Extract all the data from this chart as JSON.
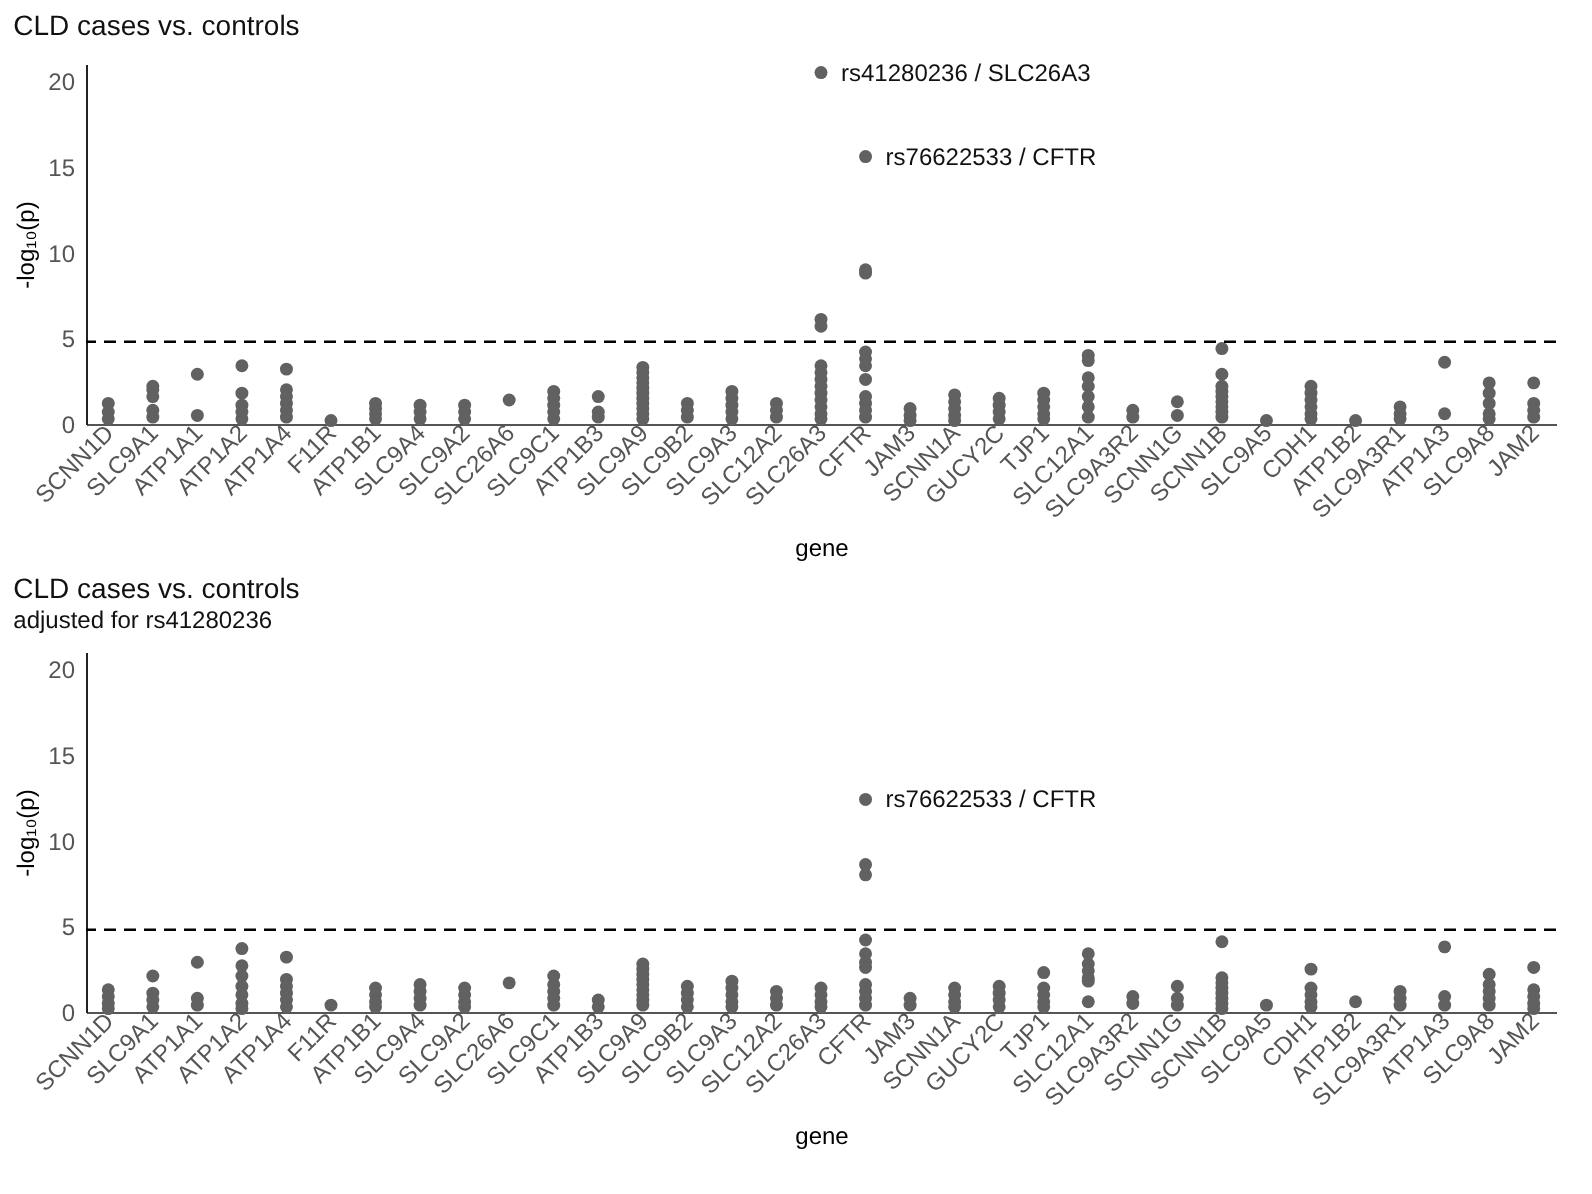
{
  "chart_data": [
    {
      "type": "scatter",
      "title": "CLD cases vs. controls",
      "xlabel": "gene",
      "ylabel": "-log₁₀(p)",
      "categories": [
        "SCNN1D",
        "SLC9A1",
        "ATP1A1",
        "ATP1A2",
        "ATP1A4",
        "F11R",
        "ATP1B1",
        "SLC9A4",
        "SLC9A2",
        "SLC26A6",
        "SLC9C1",
        "ATP1B3",
        "SLC9A9",
        "SLC9B2",
        "SLC9A3",
        "SLC12A2",
        "SLC26A3",
        "CFTR",
        "JAM3",
        "SCNN1A",
        "GUCY2C",
        "TJP1",
        "SLC12A1",
        "SLC9A3R2",
        "SCNN1G",
        "SCNN1B",
        "SLC9A5",
        "CDH1",
        "ATP1B2",
        "SLC9A3R1",
        "ATP1A3",
        "SLC9A8",
        "JAM2"
      ],
      "series": [
        {
          "color": "#616161",
          "x": [
            "SCNN1D",
            "SCNN1D",
            "SCNN1D",
            "SLC9A1",
            "SLC9A1",
            "SLC9A1",
            "SLC9A1",
            "SLC9A1",
            "ATP1A1",
            "ATP1A1",
            "ATP1A2",
            "ATP1A2",
            "ATP1A2",
            "ATP1A2",
            "ATP1A2",
            "ATP1A4",
            "ATP1A4",
            "ATP1A4",
            "ATP1A4",
            "ATP1A4",
            "ATP1A4",
            "F11R",
            "ATP1B1",
            "ATP1B1",
            "ATP1B1",
            "ATP1B1",
            "SLC9A4",
            "SLC9A4",
            "SLC9A4",
            "SLC9A2",
            "SLC9A2",
            "SLC9A2",
            "SLC26A6",
            "SLC9C1",
            "SLC9C1",
            "SLC9C1",
            "SLC9C1",
            "SLC9C1",
            "ATP1B3",
            "ATP1B3",
            "ATP1B3",
            "SLC9A9",
            "SLC9A9",
            "SLC9A9",
            "SLC9A9",
            "SLC9A9",
            "SLC9A9",
            "SLC9A9",
            "SLC9A9",
            "SLC9A9",
            "SLC9A9",
            "SLC9A9",
            "SLC9B2",
            "SLC9B2",
            "SLC9B2",
            "SLC9A3",
            "SLC9A3",
            "SLC9A3",
            "SLC9A3",
            "SLC9A3",
            "SLC12A2",
            "SLC12A2",
            "SLC12A2",
            "SLC26A3",
            "SLC26A3",
            "SLC26A3",
            "SLC26A3",
            "SLC26A3",
            "SLC26A3",
            "SLC26A3",
            "SLC26A3",
            "SLC26A3",
            "SLC26A3",
            "SLC26A3",
            "SLC26A3",
            "CFTR",
            "CFTR",
            "CFTR",
            "CFTR",
            "CFTR",
            "CFTR",
            "CFTR",
            "CFTR",
            "CFTR",
            "CFTR",
            "CFTR",
            "JAM3",
            "JAM3",
            "JAM3",
            "SCNN1A",
            "SCNN1A",
            "SCNN1A",
            "SCNN1A",
            "SCNN1A",
            "GUCY2C",
            "GUCY2C",
            "GUCY2C",
            "GUCY2C",
            "TJP1",
            "TJP1",
            "TJP1",
            "TJP1",
            "TJP1",
            "SLC12A1",
            "SLC12A1",
            "SLC12A1",
            "SLC12A1",
            "SLC12A1",
            "SLC12A1",
            "SLC12A1",
            "SLC9A3R2",
            "SLC9A3R2",
            "SCNN1G",
            "SCNN1G",
            "SCNN1B",
            "SCNN1B",
            "SCNN1B",
            "SCNN1B",
            "SCNN1B",
            "SCNN1B",
            "SCNN1B",
            "SCNN1B",
            "SCNN1B",
            "SLC9A5",
            "CDH1",
            "CDH1",
            "CDH1",
            "CDH1",
            "CDH1",
            "CDH1",
            "ATP1B2",
            "SLC9A3R1",
            "SLC9A3R1",
            "SLC9A3R1",
            "ATP1A3",
            "ATP1A3",
            "SLC9A8",
            "SLC9A8",
            "SLC9A8",
            "SLC9A8",
            "SLC9A8",
            "JAM2",
            "JAM2",
            "JAM2",
            "JAM2"
          ],
          "values": [
            1.2,
            0.7,
            0.3,
            2.2,
            2.0,
            1.6,
            0.8,
            0.4,
            2.9,
            0.5,
            3.4,
            1.8,
            1.1,
            0.7,
            0.3,
            3.2,
            2.0,
            1.6,
            1.2,
            0.8,
            0.4,
            0.2,
            1.2,
            0.9,
            0.6,
            0.3,
            1.1,
            0.7,
            0.3,
            1.1,
            0.7,
            0.3,
            1.4,
            1.9,
            1.5,
            1.1,
            0.7,
            0.3,
            1.6,
            0.7,
            0.4,
            3.3,
            3.0,
            2.7,
            2.4,
            2.1,
            1.8,
            1.5,
            1.2,
            0.9,
            0.6,
            0.3,
            1.2,
            0.8,
            0.4,
            1.9,
            1.5,
            1.1,
            0.7,
            0.3,
            1.2,
            0.8,
            0.4,
            20.5,
            6.1,
            5.7,
            3.4,
            3.0,
            2.6,
            2.2,
            1.8,
            1.4,
            1.0,
            0.6,
            0.3,
            15.6,
            9.0,
            8.8,
            4.2,
            3.8,
            3.4,
            2.6,
            1.6,
            1.2,
            0.8,
            0.4,
            0.9,
            0.5,
            0.2,
            1.7,
            1.3,
            0.9,
            0.5,
            0.2,
            1.5,
            1.1,
            0.7,
            0.3,
            1.8,
            1.4,
            1.0,
            0.6,
            0.3,
            4.0,
            3.7,
            2.7,
            2.2,
            1.6,
            1.0,
            0.4,
            0.8,
            0.4,
            1.3,
            0.5,
            4.4,
            2.9,
            2.2,
            1.9,
            1.6,
            1.3,
            1.0,
            0.7,
            0.4,
            0.2,
            2.2,
            1.8,
            1.4,
            1.0,
            0.6,
            0.3,
            0.2,
            1.0,
            0.6,
            0.3,
            3.6,
            0.6,
            2.4,
            1.8,
            1.2,
            0.6,
            0.3,
            2.4,
            1.2,
            0.8,
            0.4
          ]
        }
      ],
      "annotations": [
        {
          "text": "rs41280236 / SLC26A3",
          "x": "SLC26A3",
          "y": 20.5
        },
        {
          "text": "rs76622533 / CFTR",
          "x": "CFTR",
          "y": 15.6
        }
      ],
      "ylim": [
        0,
        21
      ],
      "yticks": [
        0,
        5,
        10,
        15,
        20
      ],
      "grid": false,
      "legend": false,
      "marker": "circle",
      "ref_lines": [
        {
          "axis": "y",
          "value": 4.8,
          "color": "#000000",
          "line_style": "dashed"
        }
      ]
    },
    {
      "type": "scatter",
      "title": "CLD cases vs. controls",
      "subtitle": "adjusted for rs41280236",
      "xlabel": "gene",
      "ylabel": "-log₁₀(p)",
      "categories": [
        "SCNN1D",
        "SLC9A1",
        "ATP1A1",
        "ATP1A2",
        "ATP1A4",
        "F11R",
        "ATP1B1",
        "SLC9A4",
        "SLC9A2",
        "SLC26A6",
        "SLC9C1",
        "ATP1B3",
        "SLC9A9",
        "SLC9B2",
        "SLC9A3",
        "SLC12A2",
        "SLC26A3",
        "CFTR",
        "JAM3",
        "SCNN1A",
        "GUCY2C",
        "TJP1",
        "SLC12A1",
        "SLC9A3R2",
        "SCNN1G",
        "SCNN1B",
        "SLC9A5",
        "CDH1",
        "ATP1B2",
        "SLC9A3R1",
        "ATP1A3",
        "SLC9A8",
        "JAM2"
      ],
      "series": [
        {
          "color": "#616161",
          "x": [
            "SCNN1D",
            "SCNN1D",
            "SCNN1D",
            "SCNN1D",
            "SLC9A1",
            "SLC9A1",
            "SLC9A1",
            "SLC9A1",
            "ATP1A1",
            "ATP1A1",
            "ATP1A1",
            "ATP1A2",
            "ATP1A2",
            "ATP1A2",
            "ATP1A2",
            "ATP1A2",
            "ATP1A2",
            "ATP1A2",
            "ATP1A4",
            "ATP1A4",
            "ATP1A4",
            "ATP1A4",
            "ATP1A4",
            "ATP1A4",
            "F11R",
            "ATP1B1",
            "ATP1B1",
            "ATP1B1",
            "ATP1B1",
            "SLC9A4",
            "SLC9A4",
            "SLC9A4",
            "SLC9A4",
            "SLC9A2",
            "SLC9A2",
            "SLC9A2",
            "SLC9A2",
            "SLC26A6",
            "SLC9C1",
            "SLC9C1",
            "SLC9C1",
            "SLC9C1",
            "SLC9C1",
            "ATP1B3",
            "ATP1B3",
            "SLC9A9",
            "SLC9A9",
            "SLC9A9",
            "SLC9A9",
            "SLC9A9",
            "SLC9A9",
            "SLC9A9",
            "SLC9A9",
            "SLC9A9",
            "SLC9B2",
            "SLC9B2",
            "SLC9B2",
            "SLC9B2",
            "SLC9A3",
            "SLC9A3",
            "SLC9A3",
            "SLC9A3",
            "SLC9A3",
            "SLC12A2",
            "SLC12A2",
            "SLC12A2",
            "SLC26A3",
            "SLC26A3",
            "SLC26A3",
            "SLC26A3",
            "CFTR",
            "CFTR",
            "CFTR",
            "CFTR",
            "CFTR",
            "CFTR",
            "CFTR",
            "CFTR",
            "CFTR",
            "CFTR",
            "CFTR",
            "JAM3",
            "JAM3",
            "SCNN1A",
            "SCNN1A",
            "SCNN1A",
            "SCNN1A",
            "GUCY2C",
            "GUCY2C",
            "GUCY2C",
            "GUCY2C",
            "TJP1",
            "TJP1",
            "TJP1",
            "TJP1",
            "TJP1",
            "SLC12A1",
            "SLC12A1",
            "SLC12A1",
            "SLC12A1",
            "SLC12A1",
            "SLC12A1",
            "SLC9A3R2",
            "SLC9A3R2",
            "SCNN1G",
            "SCNN1G",
            "SCNN1G",
            "SCNN1B",
            "SCNN1B",
            "SCNN1B",
            "SCNN1B",
            "SCNN1B",
            "SCNN1B",
            "SCNN1B",
            "SCNN1B",
            "SLC9A5",
            "CDH1",
            "CDH1",
            "CDH1",
            "CDH1",
            "CDH1",
            "ATP1B2",
            "SLC9A3R1",
            "SLC9A3R1",
            "SLC9A3R1",
            "ATP1A3",
            "ATP1A3",
            "ATP1A3",
            "SLC9A8",
            "SLC9A8",
            "SLC9A8",
            "SLC9A8",
            "SLC9A8",
            "JAM2",
            "JAM2",
            "JAM2",
            "JAM2",
            "JAM2"
          ],
          "values": [
            1.3,
            0.9,
            0.5,
            0.2,
            2.1,
            1.1,
            0.7,
            0.3,
            2.9,
            0.8,
            0.4,
            3.7,
            2.7,
            2.1,
            1.5,
            1.0,
            0.5,
            0.2,
            3.2,
            1.9,
            1.5,
            1.1,
            0.7,
            0.3,
            0.4,
            1.4,
            1.0,
            0.6,
            0.3,
            1.6,
            1.2,
            0.8,
            0.4,
            1.4,
            1.0,
            0.6,
            0.3,
            1.7,
            2.1,
            1.6,
            1.2,
            0.8,
            0.4,
            0.7,
            0.3,
            2.8,
            2.5,
            2.2,
            1.9,
            1.6,
            1.3,
            1.0,
            0.7,
            0.4,
            1.5,
            1.1,
            0.7,
            0.3,
            1.8,
            1.4,
            1.0,
            0.6,
            0.3,
            1.2,
            0.8,
            0.4,
            1.4,
            1.0,
            0.6,
            0.3,
            12.4,
            8.6,
            8.0,
            4.2,
            3.4,
            2.9,
            2.6,
            1.6,
            1.2,
            0.8,
            0.4,
            0.8,
            0.4,
            1.4,
            1.0,
            0.6,
            0.3,
            1.5,
            1.1,
            0.7,
            0.3,
            2.3,
            1.4,
            1.0,
            0.6,
            0.3,
            3.4,
            2.8,
            2.4,
            2.0,
            1.8,
            0.6,
            0.9,
            0.5,
            1.5,
            0.8,
            0.4,
            4.1,
            2.0,
            1.7,
            1.4,
            1.1,
            0.8,
            0.5,
            0.2,
            0.4,
            2.5,
            1.4,
            1.0,
            0.6,
            0.3,
            0.6,
            1.2,
            0.8,
            0.4,
            3.8,
            0.9,
            0.4,
            2.2,
            1.6,
            1.2,
            0.8,
            0.4,
            2.6,
            1.3,
            0.9,
            0.5,
            0.2
          ]
        }
      ],
      "annotations": [
        {
          "text": "rs76622533 / CFTR",
          "x": "CFTR",
          "y": 12.4
        }
      ],
      "ylim": [
        0,
        21
      ],
      "yticks": [
        0,
        5,
        10,
        15,
        20
      ],
      "grid": false,
      "legend": false,
      "marker": "circle",
      "ref_lines": [
        {
          "axis": "y",
          "value": 4.8,
          "color": "#000000",
          "line_style": "dashed"
        }
      ]
    }
  ]
}
